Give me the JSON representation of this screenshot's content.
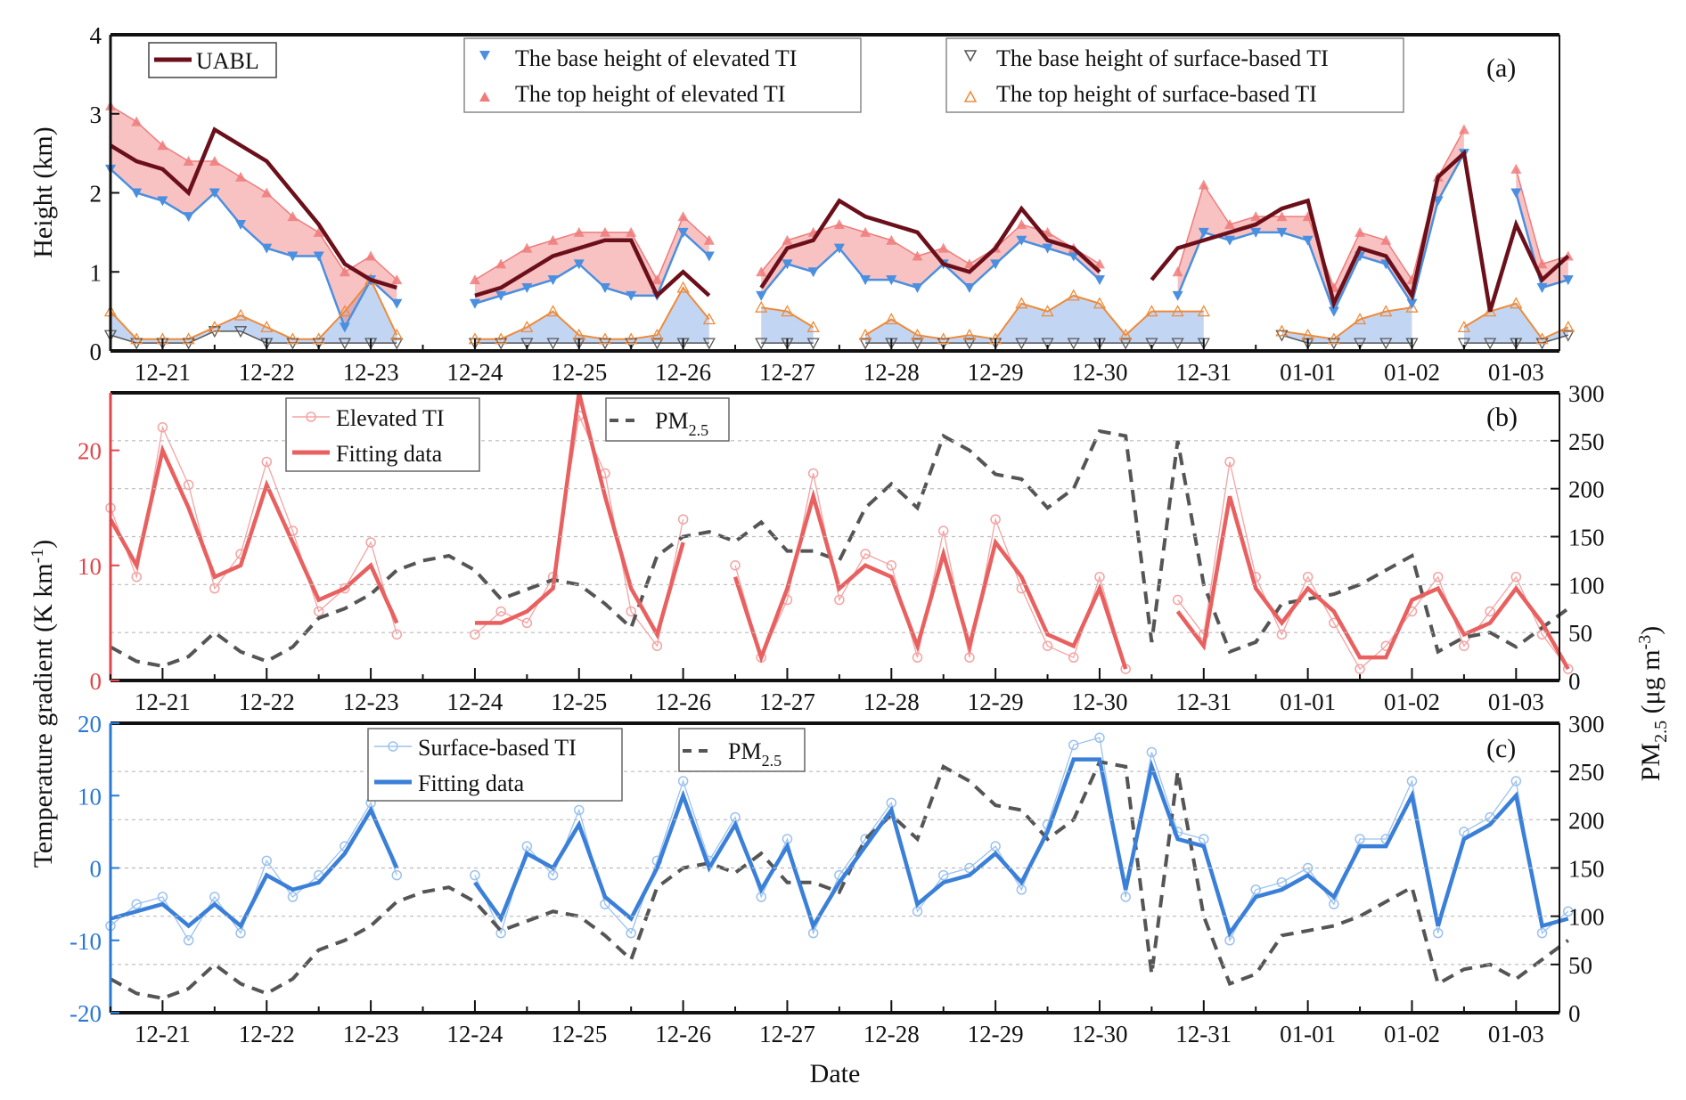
{
  "chart_data": [
    {
      "panel": "(a)",
      "type": "line",
      "ylabel": "Height (km)",
      "ylim": [
        0,
        4
      ],
      "yticks": [
        "0",
        "1",
        "2",
        "3",
        "4"
      ],
      "xlim": [
        "12-20 12:00",
        "01-03 10:00"
      ],
      "xticks": [
        "12-21",
        "12-22",
        "12-23",
        "12-24",
        "12-25",
        "12-26",
        "12-27",
        "12-28",
        "12-29",
        "12-30",
        "12-31",
        "01-01",
        "01-02",
        "01-03"
      ],
      "legend": [
        "UABL",
        "The base height of elevated TI",
        "The top height of elevated TI",
        "The base height of surface-based TI",
        "The top height of surface-based TI"
      ],
      "series": [
        {
          "name": "UABL",
          "color": "#6b0f1a",
          "values": [
            2.6,
            2.4,
            2.3,
            2.0,
            2.8,
            2.6,
            2.4,
            2.0,
            1.6,
            1.1,
            0.9,
            0.8,
            null,
            null,
            0.7,
            0.8,
            1.0,
            1.2,
            1.3,
            1.4,
            1.4,
            0.7,
            1.0,
            0.7,
            null,
            0.8,
            1.3,
            1.4,
            1.9,
            1.7,
            1.6,
            1.5,
            1.1,
            1.0,
            1.3,
            1.8,
            1.4,
            1.3,
            1.0,
            null,
            0.9,
            1.3,
            1.4,
            1.5,
            1.6,
            1.8,
            1.9,
            0.6,
            1.3,
            1.2,
            0.7,
            2.2,
            2.5,
            0.5,
            1.6,
            0.9,
            1.2
          ]
        },
        {
          "name": "The base height of elevated TI",
          "color": "#4a8fe0",
          "values": [
            2.3,
            2.0,
            1.9,
            1.7,
            2.0,
            1.6,
            1.3,
            1.2,
            1.2,
            0.3,
            0.9,
            0.6,
            null,
            null,
            0.6,
            0.7,
            0.8,
            0.9,
            1.1,
            0.8,
            0.7,
            0.7,
            1.5,
            1.2,
            null,
            0.7,
            1.1,
            1.0,
            1.3,
            0.9,
            0.9,
            0.8,
            1.1,
            0.8,
            1.1,
            1.4,
            1.3,
            1.2,
            0.9,
            null,
            null,
            0.7,
            1.5,
            1.4,
            1.5,
            1.5,
            1.4,
            0.5,
            1.2,
            1.1,
            0.6,
            1.9,
            2.5,
            null,
            2.0,
            0.8,
            0.9
          ]
        },
        {
          "name": "The top height of elevated TI",
          "color": "#f07b7b",
          "values": [
            3.1,
            2.9,
            2.6,
            2.4,
            2.4,
            2.2,
            2.0,
            1.7,
            1.5,
            1.0,
            1.2,
            0.9,
            null,
            null,
            0.9,
            1.1,
            1.3,
            1.4,
            1.5,
            1.5,
            1.5,
            0.9,
            1.7,
            1.4,
            null,
            1.0,
            1.4,
            1.5,
            1.6,
            1.5,
            1.4,
            1.2,
            1.3,
            1.1,
            1.3,
            1.6,
            1.5,
            1.3,
            1.1,
            null,
            null,
            1.0,
            2.1,
            1.6,
            1.7,
            1.7,
            1.7,
            0.8,
            1.5,
            1.4,
            0.9,
            2.2,
            2.8,
            null,
            2.3,
            1.1,
            1.2
          ]
        },
        {
          "name": "The base height of surface-based TI",
          "color": "#555555",
          "values": [
            0.2,
            0.1,
            0.1,
            0.1,
            0.25,
            0.25,
            0.1,
            0.1,
            0.1,
            0.1,
            0.1,
            0.1,
            null,
            null,
            0.1,
            0.1,
            0.1,
            0.1,
            0.1,
            0.1,
            0.1,
            0.1,
            0.1,
            0.1,
            null,
            0.1,
            0.1,
            0.1,
            null,
            0.1,
            0.1,
            0.1,
            0.1,
            0.1,
            0.1,
            0.1,
            0.1,
            0.1,
            0.1,
            0.1,
            0.1,
            0.1,
            0.1,
            null,
            null,
            0.2,
            0.1,
            0.1,
            0.1,
            0.1,
            0.1,
            null,
            0.1,
            0.1,
            0.1,
            0.1,
            0.2
          ]
        },
        {
          "name": "The top height of surface-based TI",
          "color": "#ee8a3a",
          "values": [
            0.5,
            0.15,
            0.15,
            0.15,
            0.3,
            0.45,
            0.3,
            0.15,
            0.15,
            0.5,
            0.9,
            0.2,
            null,
            null,
            0.15,
            0.15,
            0.3,
            0.5,
            0.2,
            0.15,
            0.15,
            0.2,
            0.8,
            0.4,
            null,
            0.55,
            0.5,
            0.3,
            null,
            0.2,
            0.4,
            0.2,
            0.15,
            0.2,
            0.15,
            0.6,
            0.5,
            0.7,
            0.6,
            0.2,
            0.5,
            0.5,
            0.5,
            null,
            null,
            0.25,
            0.2,
            0.15,
            0.4,
            0.5,
            0.55,
            null,
            0.3,
            0.5,
            0.6,
            0.15,
            0.3
          ]
        }
      ]
    },
    {
      "panel": "(b)",
      "type": "line",
      "ylim": [
        0,
        25
      ],
      "yticks": [
        "0",
        "10",
        "20"
      ],
      "y2lim": [
        0,
        300
      ],
      "y2ticks": [
        "0",
        "50",
        "100",
        "150",
        "200",
        "250",
        "300"
      ],
      "grid": "dashed horizontal at right-axis ticks",
      "legend": [
        "Elevated TI",
        "Fitting data",
        "PM2.5"
      ],
      "series": [
        {
          "name": "Elevated TI",
          "color": "#f4a3a3",
          "values": [
            15,
            9,
            22,
            17,
            8,
            11,
            19,
            13,
            6,
            8,
            12,
            4,
            null,
            null,
            4,
            6,
            5,
            9,
            23,
            18,
            6,
            3,
            14,
            null,
            10,
            2,
            7,
            18,
            7,
            11,
            10,
            2,
            13,
            2,
            14,
            8,
            3,
            2,
            9,
            1,
            null,
            7,
            4,
            19,
            9,
            4,
            9,
            5,
            1,
            3,
            6,
            9,
            3,
            6,
            9,
            4,
            1
          ]
        },
        {
          "name": "Fitting data",
          "color": "#e8605f",
          "values": [
            14,
            10,
            20,
            15,
            9,
            10,
            17,
            12,
            7,
            8,
            10,
            5,
            null,
            null,
            5,
            5,
            6,
            8,
            25,
            16,
            8,
            4,
            12,
            null,
            9,
            2,
            8,
            16,
            8,
            10,
            9,
            3,
            11,
            3,
            12,
            9,
            4,
            3,
            8,
            1,
            null,
            6,
            3,
            16,
            8,
            5,
            8,
            6,
            2,
            2,
            7,
            8,
            4,
            5,
            8,
            5,
            1
          ]
        },
        {
          "name": "PM2.5",
          "color": "#555555",
          "axis": "right",
          "values": [
            35,
            20,
            15,
            25,
            50,
            30,
            20,
            35,
            65,
            75,
            90,
            115,
            125,
            130,
            115,
            85,
            95,
            105,
            100,
            80,
            55,
            130,
            150,
            155,
            145,
            165,
            135,
            135,
            125,
            180,
            205,
            180,
            255,
            240,
            215,
            210,
            180,
            200,
            260,
            255,
            40,
            250,
            100,
            30,
            40,
            80,
            85,
            90,
            100,
            115,
            130,
            30,
            45,
            50,
            35,
            55,
            75
          ]
        }
      ]
    },
    {
      "panel": "(c)",
      "type": "line",
      "ylim": [
        -20,
        20
      ],
      "yticks": [
        "-20",
        "-10",
        "0",
        "10",
        "20"
      ],
      "y2lim": [
        0,
        300
      ],
      "y2ticks": [
        "0",
        "50",
        "100",
        "150",
        "200",
        "250",
        "300"
      ],
      "grid": "dashed horizontal at right-axis ticks",
      "legend": [
        "Surface-based TI",
        "Fitting data",
        "PM2.5"
      ],
      "series": [
        {
          "name": "Surface-based TI",
          "color": "#9cc2ee",
          "values": [
            -8,
            -5,
            -4,
            -10,
            -4,
            -9,
            1,
            -4,
            -1,
            3,
            9,
            -1,
            null,
            null,
            -1,
            -9,
            3,
            -1,
            8,
            -5,
            -9,
            1,
            12,
            1,
            7,
            -4,
            4,
            -9,
            -1,
            4,
            9,
            -6,
            -1,
            0,
            3,
            -3,
            6,
            17,
            18,
            -4,
            16,
            5,
            4,
            -10,
            -3,
            -2,
            0,
            -5,
            4,
            4,
            12,
            -9,
            5,
            7,
            12,
            -9,
            -6
          ]
        },
        {
          "name": "Fitting data",
          "color": "#3a7fd8",
          "values": [
            -7,
            -6,
            -5,
            -8,
            -5,
            -8,
            -1,
            -3,
            -2,
            2,
            8,
            0,
            null,
            null,
            -2,
            -7,
            2,
            0,
            6,
            -4,
            -7,
            0,
            10,
            0,
            6,
            -3,
            3,
            -8,
            -2,
            3,
            8,
            -5,
            -2,
            -1,
            2,
            -2,
            5,
            15,
            15,
            -3,
            14,
            4,
            3,
            -9,
            -4,
            -3,
            -1,
            -4,
            3,
            3,
            10,
            -8,
            4,
            6,
            10,
            -8,
            -7
          ]
        },
        {
          "name": "PM2.5",
          "color": "#555555",
          "axis": "right",
          "values": [
            35,
            20,
            15,
            25,
            50,
            30,
            20,
            35,
            65,
            75,
            90,
            115,
            125,
            130,
            115,
            85,
            95,
            105,
            100,
            80,
            55,
            130,
            150,
            155,
            145,
            165,
            135,
            135,
            125,
            180,
            205,
            180,
            255,
            240,
            215,
            210,
            180,
            200,
            260,
            255,
            40,
            250,
            100,
            30,
            40,
            80,
            85,
            90,
            100,
            115,
            130,
            30,
            45,
            50,
            35,
            55,
            75
          ]
        }
      ]
    }
  ],
  "times": [
    "12-20 12:00",
    "12-20 18:00",
    "12-21 00:00",
    "12-21 06:00",
    "12-21 12:00",
    "12-21 18:00",
    "12-22 00:00",
    "12-22 06:00",
    "12-22 12:00",
    "12-22 18:00",
    "12-23 00:00",
    "12-23 06:00",
    "12-23 12:00",
    "12-23 18:00",
    "12-24 00:00",
    "12-24 06:00",
    "12-24 12:00",
    "12-24 18:00",
    "12-25 00:00",
    "12-25 06:00",
    "12-25 12:00",
    "12-25 18:00",
    "12-26 00:00",
    "12-26 06:00",
    "12-26 12:00",
    "12-26 18:00",
    "12-27 00:00",
    "12-27 06:00",
    "12-27 12:00",
    "12-27 18:00",
    "12-28 00:00",
    "12-28 06:00",
    "12-28 12:00",
    "12-28 18:00",
    "12-29 00:00",
    "12-29 06:00",
    "12-29 12:00",
    "12-29 18:00",
    "12-30 00:00",
    "12-30 06:00",
    "12-30 12:00",
    "12-30 18:00",
    "12-31 00:00",
    "12-31 06:00",
    "12-31 12:00",
    "12-31 18:00",
    "01-01 00:00",
    "01-01 06:00",
    "01-01 12:00",
    "01-01 18:00",
    "01-02 00:00",
    "01-02 06:00",
    "01-02 12:00",
    "01-02 18:00",
    "01-03 00:00",
    "01-03 06:00",
    "01-03 12:00"
  ],
  "labels": {
    "xlabel": "Date",
    "ylabel_a": "Height (km)",
    "ylabel_bc": {
      "main": "Temperature gradient (K km",
      "sup": "-1",
      "end": ")"
    },
    "ylabel_right": {
      "pm": "PM",
      "sub": "2.5",
      "unit": " (μg m",
      "sup": "-3",
      "end": ")"
    },
    "panel_a": "(a)",
    "panel_b": "(b)",
    "panel_c": "(c)",
    "leg_uabl": "UABL",
    "leg_eb": "The base height of elevated TI",
    "leg_et": "The top height of elevated TI",
    "leg_sb": "The base height of surface-based TI",
    "leg_st": "The top height of surface-based TI",
    "leg_eti": "Elevated TI",
    "leg_fit_b": "Fitting data",
    "leg_sti": "Surface-based TI",
    "leg_fit_c": "Fitting data",
    "pm_main": "PM",
    "pm_sub": "2.5"
  },
  "colors": {
    "axis_b": "#e0474c",
    "axis_c": "#2a78d6",
    "uabl": "#6b0f1a",
    "pm": "#555555"
  }
}
